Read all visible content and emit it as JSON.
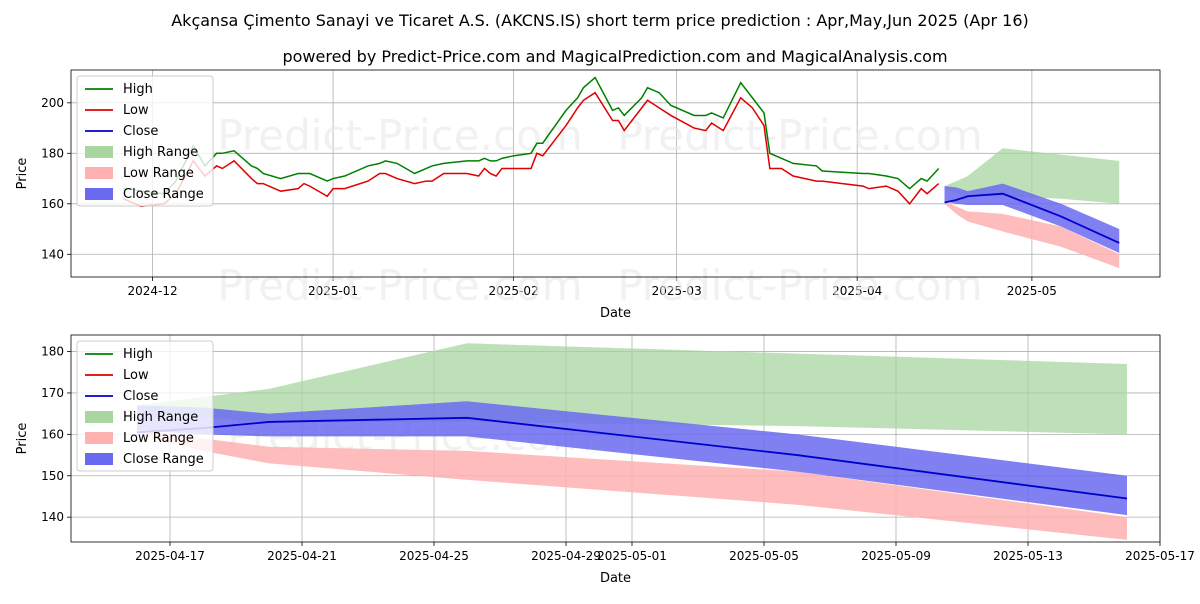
{
  "title": "Akçansa Çimento Sanayi ve Ticaret A.S. (AKCNS.IS) short term price prediction : Apr,May,Jun 2025 (Apr 16)",
  "subtitle": "powered by Predict-Price.com and MagicalPrediction.com and MagicalAnalysis.com",
  "watermark": "Predict-Price.com",
  "colors": {
    "high": "#008000",
    "low": "#e00000",
    "close": "#0000cc",
    "high_range": "#a8d5a0",
    "low_range": "#ffb0b0",
    "close_range": "#6a6af0"
  },
  "chart_data": [
    {
      "type": "line",
      "xlabel": "Date",
      "ylabel": "Price",
      "x_range": [
        "2024-11-17",
        "2025-05-23"
      ],
      "ylim": [
        131,
        213
      ],
      "x_ticks": [
        {
          "date": "2024-12-01",
          "label": "2024-12"
        },
        {
          "date": "2025-01-01",
          "label": "2025-01"
        },
        {
          "date": "2025-02-01",
          "label": "2025-02"
        },
        {
          "date": "2025-03-01",
          "label": "2025-03"
        },
        {
          "date": "2025-04-01",
          "label": "2025-04"
        },
        {
          "date": "2025-05-01",
          "label": "2025-05"
        }
      ],
      "y_ticks": [
        140,
        160,
        180,
        200
      ],
      "grid": true,
      "legend_position": "top-left",
      "legend": [
        "High",
        "Low",
        "Close",
        "High Range",
        "Low Range",
        "Close Range"
      ],
      "history": {
        "dates": [
          "2024-11-26",
          "2024-11-27",
          "2024-11-29",
          "2024-12-03",
          "2024-12-05",
          "2024-12-08",
          "2024-12-10",
          "2024-12-12",
          "2024-12-13",
          "2024-12-15",
          "2024-12-18",
          "2024-12-19",
          "2024-12-20",
          "2024-12-23",
          "2024-12-26",
          "2024-12-27",
          "2024-12-28",
          "2024-12-31",
          "2025-01-01",
          "2025-01-03",
          "2025-01-07",
          "2025-01-09",
          "2025-01-10",
          "2025-01-12",
          "2025-01-15",
          "2025-01-17",
          "2025-01-18",
          "2025-01-20",
          "2025-01-24",
          "2025-01-26",
          "2025-01-27",
          "2025-01-28",
          "2025-01-29",
          "2025-01-30",
          "2025-02-01",
          "2025-02-04",
          "2025-02-05",
          "2025-02-06",
          "2025-02-10",
          "2025-02-12",
          "2025-02-13",
          "2025-02-15",
          "2025-02-18",
          "2025-02-19",
          "2025-02-20",
          "2025-02-23",
          "2025-02-24",
          "2025-02-26",
          "2025-02-28",
          "2025-03-04",
          "2025-03-06",
          "2025-03-07",
          "2025-03-09",
          "2025-03-12",
          "2025-03-14",
          "2025-03-16",
          "2025-03-17",
          "2025-03-19",
          "2025-03-21",
          "2025-03-25",
          "2025-03-26",
          "2025-04-02",
          "2025-04-03",
          "2025-04-06",
          "2025-04-08",
          "2025-04-10",
          "2025-04-12",
          "2025-04-13",
          "2025-04-15"
        ],
        "high": [
          166,
          166,
          165,
          164,
          169,
          183,
          175,
          180,
          180,
          181,
          175,
          174,
          172,
          170,
          172,
          172,
          172,
          169,
          170,
          171,
          175,
          176,
          177,
          176,
          172,
          174,
          175,
          176,
          177,
          177,
          178,
          177,
          177,
          178,
          179,
          180,
          184,
          184,
          197,
          202,
          206,
          210,
          197,
          198,
          195,
          202,
          206,
          204,
          199,
          195,
          195,
          196,
          194,
          208,
          202,
          196,
          180,
          178,
          176,
          175,
          173,
          172,
          172,
          171,
          170,
          166,
          170,
          169,
          174
        ]
      }
    },
    {
      "type": "line",
      "xlabel": "Date",
      "ylabel": "Price",
      "x_range": [
        "2025-04-14",
        "2025-05-17"
      ],
      "ylim": [
        134,
        184
      ],
      "x_ticks": [
        {
          "date": "2025-04-17",
          "label": "2025-04-17"
        },
        {
          "date": "2025-04-21",
          "label": "2025-04-21"
        },
        {
          "date": "2025-04-25",
          "label": "2025-04-25"
        },
        {
          "date": "2025-04-29",
          "label": "2025-04-29"
        },
        {
          "date": "2025-05-01",
          "label": "2025-05-01"
        },
        {
          "date": "2025-05-05",
          "label": "2025-05-05"
        },
        {
          "date": "2025-05-09",
          "label": "2025-05-09"
        },
        {
          "date": "2025-05-13",
          "label": "2025-05-13"
        },
        {
          "date": "2025-05-17",
          "label": "2025-05-17"
        }
      ],
      "y_ticks": [
        140,
        150,
        160,
        170,
        180
      ],
      "grid": true,
      "legend_position": "top-left",
      "legend": [
        "High",
        "Low",
        "Close",
        "High Range",
        "Low Range",
        "Close Range"
      ],
      "forecast": {
        "dates": [
          "2025-04-16",
          "2025-04-18",
          "2025-04-20",
          "2025-04-26",
          "2025-05-06",
          "2025-05-16"
        ],
        "close": [
          160.5,
          161.5,
          163,
          164,
          155,
          144.5
        ],
        "high_upper": [
          167,
          169,
          171,
          182,
          179.5,
          177
        ],
        "high_lower": [
          166,
          164,
          163,
          163,
          162,
          160
        ],
        "low_upper": [
          161,
          159,
          157,
          156,
          151,
          140
        ],
        "low_lower": [
          160,
          156,
          153,
          149,
          143,
          134.5
        ],
        "close_upper": [
          167,
          166.5,
          165,
          168,
          160,
          150
        ],
        "close_lower": [
          161,
          160,
          159.5,
          159.5,
          151,
          140.5
        ]
      }
    }
  ]
}
